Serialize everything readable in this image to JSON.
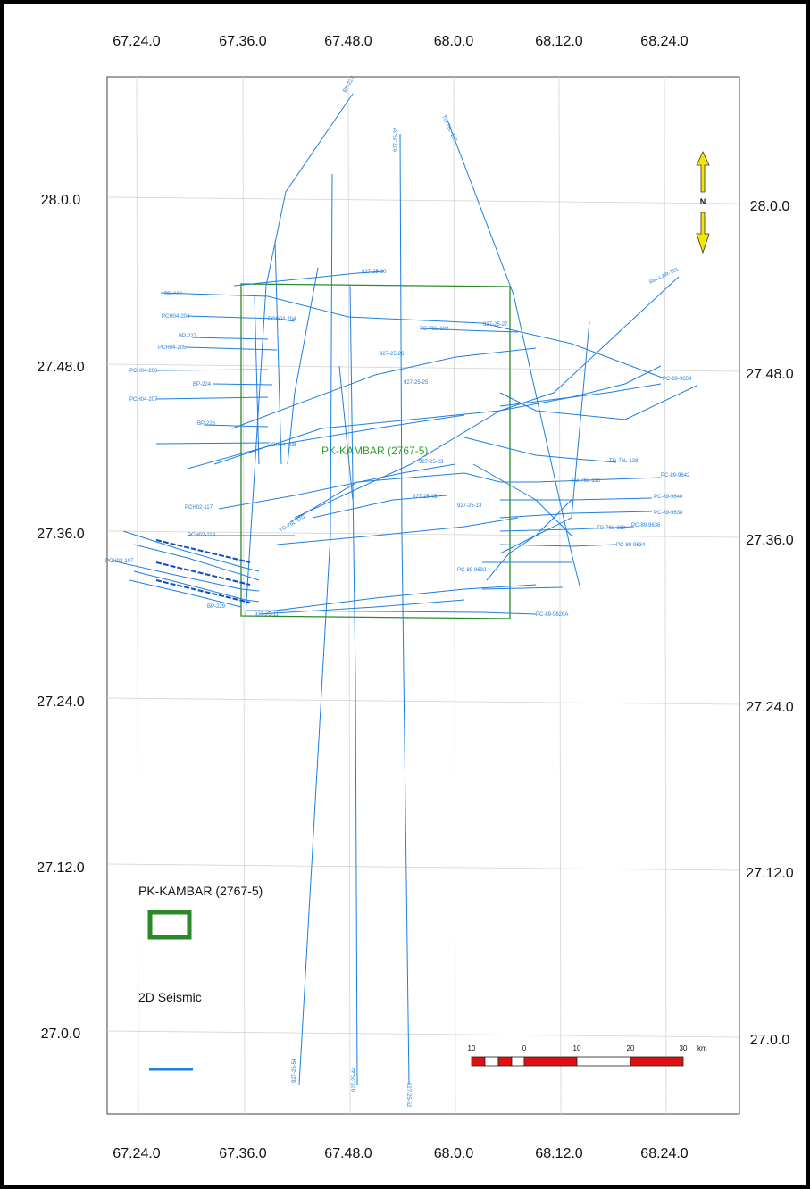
{
  "map": {
    "top_ticks": [
      "67.24.0",
      "67.36.0",
      "67.48.0",
      "68.0.0",
      "68.12.0",
      "68.24.0"
    ],
    "bottom_ticks": [
      "67.24.0",
      "67.36.0",
      "67.48.0",
      "68.0.0",
      "68.12.0",
      "68.24.0"
    ],
    "left_ticks": [
      "28.0.0",
      "27.48.0",
      "27.36.0",
      "27.24.0",
      "27.12.0",
      "27.0.0"
    ],
    "right_ticks": [
      "28.0.0",
      "27.48.0",
      "27.36.0",
      "27.24.0",
      "27.12.0",
      "27.0.0"
    ],
    "block_label": "PK-KAMBAR (2767-5)",
    "north_letter": "N",
    "colors": {
      "seismic": "#1e7fe0",
      "block": "#2a8a2a",
      "scale_red": "#e01010",
      "north": "#f5e400"
    }
  },
  "legend": {
    "block_title": "PK-KAMBAR (2767-5)",
    "seismic_title": "2D Seismic"
  },
  "scale_bar": {
    "labels": [
      "10",
      "0",
      "10",
      "20",
      "30"
    ],
    "unit": "km"
  },
  "line_labels": {
    "l1": "BP-227",
    "l2": "927-25-32",
    "l3": "TG-76L-113",
    "l4": "927-25-30",
    "l5": "BP-222",
    "l6": "PCH04-204",
    "l7": "PCH04-204",
    "l8": "BP-227",
    "l9": "PCH04-205",
    "l10": "PCH04-206",
    "l11": "PCH04-207",
    "l12": "BP-224",
    "l13": "BP-226",
    "l14": "PCH04-208",
    "l15": "927-25-27",
    "l16": "TG-76L-102",
    "l17": "884-LAR-101",
    "l18": "PC-89-9654",
    "l19": "PC-89-9642",
    "l20": "PC-89-9640",
    "l21": "PC-89-9638",
    "l22": "PC-89-9634",
    "l23": "PC-89-9632",
    "l24": "PC-89-9626A",
    "l25": "PCH02-117",
    "l26": "PCH02-119",
    "l27": "PCH02-107",
    "l28": "BP-229",
    "l29": "927-25-11",
    "l30": "927-25-23",
    "l31": "927-25-45",
    "l32": "927-25-13",
    "l33": "TG-76L-128",
    "l34": "TG-76L-116",
    "l35": "927-25-54",
    "l36": "927-25-44",
    "l37": "927-25-52",
    "l38": "927-25-26",
    "l39": "927-25-25",
    "l40": "TG-76L-118",
    "l41": "PC-89-9636",
    "l42": "TG-76L-110"
  }
}
